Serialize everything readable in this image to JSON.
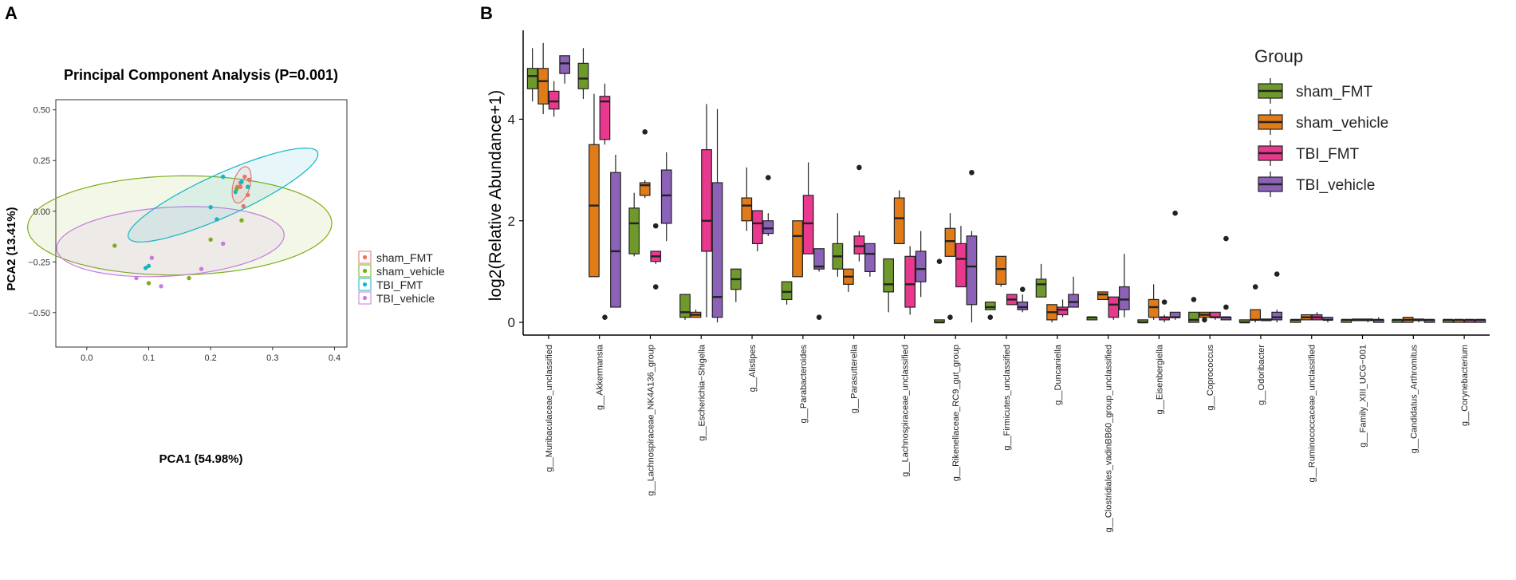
{
  "panel_a_label": "A",
  "panel_b_label": "B",
  "colors": {
    "sham_FMT": "#6F9A2B",
    "sham_vehicle": "#E07B18",
    "TBI_FMT": "#E8398F",
    "TBI_vehicle": "#8B62B8",
    "pca_sham_FMT": "#E8736C",
    "pca_sham_vehicle": "#7CAE19",
    "pca_TBI_FMT": "#13B5C7",
    "pca_TBI_vehicle": "#C77CDD"
  },
  "chart_data": [
    {
      "type": "scatter",
      "title": "Principal Component Analysis (P=0.001)",
      "xlabel": "PCA1 (54.98%)",
      "ylabel": "PCA2 (13.41%)",
      "xlim": [
        -0.05,
        0.42
      ],
      "ylim": [
        -0.67,
        0.55
      ],
      "x_ticks": [
        0.0,
        0.1,
        0.2,
        0.3,
        0.4
      ],
      "x_tick_labels": [
        "0.0",
        "0.1",
        "0.2",
        "0.3",
        "0.4"
      ],
      "y_ticks": [
        0.5,
        0.25,
        0.0,
        -0.25,
        -0.5
      ],
      "y_tick_labels": [
        "0.50",
        "0.25",
        "0.00",
        "−0.25",
        "−0.50"
      ],
      "legend": [
        "sham_FMT",
        "sham_vehicle",
        "TBI_FMT",
        "TBI_vehicle"
      ],
      "ellipses": [
        {
          "group": "sham_vehicle",
          "cx": 0.15,
          "cy": -0.07,
          "rx": 0.25,
          "ry": 0.24,
          "angle": 42
        },
        {
          "group": "TBI_vehicle",
          "cx": 0.135,
          "cy": -0.15,
          "rx": 0.195,
          "ry": 0.16,
          "angle": 36
        },
        {
          "group": "TBI_FMT",
          "cx": 0.22,
          "cy": 0.08,
          "rx": 0.27,
          "ry": 0.065,
          "angle": 58
        },
        {
          "group": "sham_FMT",
          "cx": 0.25,
          "cy": 0.13,
          "rx": 0.09,
          "ry": 0.014,
          "angle": 86
        }
      ],
      "series": [
        {
          "name": "sham_FMT",
          "points": [
            [
              0.255,
              0.17
            ],
            [
              0.26,
              0.08
            ],
            [
              0.248,
              0.14
            ],
            [
              0.253,
              0.025
            ],
            [
              0.243,
              0.12
            ],
            [
              0.248,
              0.12
            ],
            [
              0.262,
              0.155
            ]
          ]
        },
        {
          "name": "sham_vehicle",
          "points": [
            [
              0.045,
              -0.17
            ],
            [
              0.1,
              -0.355
            ],
            [
              0.165,
              -0.33
            ],
            [
              0.2,
              -0.14
            ],
            [
              0.25,
              -0.045
            ],
            [
              0.242,
              0.11
            ]
          ]
        },
        {
          "name": "TBI_FMT",
          "points": [
            [
              0.22,
              0.17
            ],
            [
              0.25,
              0.145
            ],
            [
              0.21,
              -0.04
            ],
            [
              0.24,
              0.095
            ],
            [
              0.26,
              0.12
            ],
            [
              0.095,
              -0.28
            ],
            [
              0.2,
              0.02
            ],
            [
              0.1,
              -0.27
            ]
          ]
        },
        {
          "name": "TBI_vehicle",
          "points": [
            [
              0.08,
              -0.33
            ],
            [
              0.12,
              -0.37
            ],
            [
              0.185,
              -0.285
            ],
            [
              0.22,
              -0.16
            ],
            [
              0.105,
              -0.23
            ]
          ]
        }
      ]
    },
    {
      "type": "boxplot",
      "ylabel": "log2(Relative Abundance+1)",
      "ylim": [
        -0.25,
        5.75
      ],
      "y_ticks": [
        0,
        2,
        4
      ],
      "y_tick_labels": [
        "0",
        "2",
        "4"
      ],
      "legend_title": "Group",
      "groups": [
        "sham_FMT",
        "sham_vehicle",
        "TBI_FMT",
        "TBI_vehicle"
      ],
      "categories": [
        "g__Muribaculaceae_unclassified",
        "g__Akkermansia",
        "g__Lachnospiraceae_NK4A136_group",
        "g__Escherichia−Shigella",
        "g__Alistipes",
        "g__Parabacteroides",
        "g__Parasutterella",
        "g__Lachnospiraceae_unclassified",
        "g__Rikenellaceae_RC9_gut_group",
        "g__Firmicutes_unclassified",
        "g__Duncaniella",
        "g__Clostridiales_vadinBB60_group_unclassified",
        "g__Eisenbergiella",
        "g__Coprococcus",
        "g__Odoribacter",
        "g__Ruminococcaceae_unclassified",
        "g__Family_XIII_UCG−001",
        "g__Candidatus_Arthromitus",
        "g__Corynebacterium"
      ],
      "boxes": [
        [
          [
            4.35,
            4.6,
            4.85,
            5.0,
            5.4,
            []
          ],
          [
            4.1,
            4.3,
            4.75,
            5.0,
            5.5,
            []
          ],
          [
            4.05,
            4.2,
            4.35,
            4.55,
            4.75,
            []
          ],
          [
            4.7,
            4.9,
            5.1,
            5.25,
            5.25,
            []
          ]
        ],
        [
          [
            4.4,
            4.6,
            4.8,
            5.1,
            5.4,
            []
          ],
          [
            0.9,
            0.9,
            2.3,
            3.5,
            4.5,
            []
          ],
          [
            3.5,
            3.6,
            4.35,
            4.45,
            4.7,
            [
              0.1
            ]
          ],
          [
            0.3,
            0.3,
            1.4,
            2.95,
            3.3,
            []
          ]
        ],
        [
          [
            1.3,
            1.35,
            1.95,
            2.25,
            2.55,
            []
          ],
          [
            2.45,
            2.5,
            2.7,
            2.75,
            2.8,
            [
              3.75
            ]
          ],
          [
            1.15,
            1.2,
            1.3,
            1.4,
            1.4,
            [
              0.7,
              1.9
            ]
          ],
          [
            1.6,
            1.95,
            2.5,
            3.0,
            3.35,
            []
          ]
        ],
        [
          [
            0.05,
            0.1,
            0.2,
            0.55,
            0.55,
            []
          ],
          [
            0.1,
            0.1,
            0.15,
            0.2,
            0.25,
            []
          ],
          [
            0.1,
            1.4,
            2.0,
            3.4,
            4.3,
            []
          ],
          [
            0.0,
            0.1,
            0.5,
            2.75,
            4.2,
            []
          ]
        ],
        [
          [
            0.4,
            0.65,
            0.85,
            1.05,
            1.05,
            []
          ],
          [
            1.8,
            2.0,
            2.3,
            2.45,
            3.05,
            []
          ],
          [
            1.4,
            1.55,
            1.95,
            2.2,
            2.2,
            []
          ],
          [
            1.7,
            1.75,
            1.85,
            2.0,
            2.15,
            [
              2.85
            ]
          ]
        ],
        [
          [
            0.35,
            0.45,
            0.6,
            0.8,
            0.8,
            []
          ],
          [
            0.9,
            0.9,
            1.7,
            2.0,
            2.0,
            []
          ],
          [
            1.4,
            1.35,
            1.95,
            2.5,
            3.15,
            []
          ],
          [
            1.0,
            1.05,
            1.1,
            1.45,
            1.45,
            [
              0.1
            ]
          ]
        ],
        [
          [
            0.9,
            1.05,
            1.3,
            1.55,
            2.15,
            []
          ],
          [
            0.6,
            0.75,
            0.9,
            1.05,
            1.05,
            []
          ],
          [
            1.2,
            1.35,
            1.5,
            1.7,
            1.8,
            [
              3.05
            ]
          ],
          [
            0.9,
            1.0,
            1.35,
            1.55,
            1.55,
            []
          ]
        ],
        [
          [
            0.2,
            0.6,
            0.75,
            1.25,
            1.25,
            []
          ],
          [
            1.55,
            1.55,
            2.05,
            2.45,
            2.6,
            []
          ],
          [
            0.15,
            0.3,
            0.75,
            1.3,
            1.5,
            []
          ],
          [
            0.5,
            0.8,
            1.05,
            1.4,
            1.8,
            []
          ]
        ],
        [
          [
            0.0,
            0.0,
            0.0,
            0.05,
            0.05,
            [
              1.2
            ]
          ],
          [
            1.3,
            1.3,
            1.6,
            1.85,
            2.15,
            [
              0.1
            ]
          ],
          [
            0.7,
            0.7,
            1.25,
            1.55,
            1.9,
            []
          ],
          [
            0.0,
            0.35,
            1.1,
            1.7,
            1.8,
            [
              2.95
            ]
          ]
        ],
        [
          [
            0.25,
            0.25,
            0.3,
            0.4,
            0.4,
            [
              0.1
            ]
          ],
          [
            0.7,
            0.75,
            1.05,
            1.3,
            1.3,
            []
          ],
          [
            0.35,
            0.35,
            0.45,
            0.55,
            0.55,
            []
          ],
          [
            0.2,
            0.25,
            0.3,
            0.4,
            0.55,
            [
              0.65
            ]
          ]
        ],
        [
          [
            0.5,
            0.5,
            0.75,
            0.85,
            1.15,
            []
          ],
          [
            0.0,
            0.05,
            0.2,
            0.35,
            0.35,
            []
          ],
          [
            0.1,
            0.15,
            0.25,
            0.3,
            0.45,
            []
          ],
          [
            0.3,
            0.3,
            0.4,
            0.55,
            0.9,
            []
          ]
        ],
        [
          [
            0.05,
            0.05,
            0.1,
            0.1,
            0.1,
            []
          ],
          [
            0.45,
            0.45,
            0.55,
            0.6,
            0.6,
            []
          ],
          [
            0.05,
            0.1,
            0.35,
            0.5,
            0.5,
            []
          ],
          [
            0.1,
            0.25,
            0.45,
            0.7,
            1.35,
            []
          ]
        ],
        [
          [
            0.0,
            0.0,
            0.0,
            0.05,
            0.05,
            []
          ],
          [
            0.05,
            0.1,
            0.3,
            0.45,
            0.75,
            []
          ],
          [
            0.0,
            0.05,
            0.1,
            0.1,
            0.15,
            [
              0.4
            ]
          ],
          [
            0.05,
            0.1,
            0.1,
            0.2,
            0.2,
            [
              2.15
            ]
          ]
        ],
        [
          [
            0.0,
            0.0,
            0.05,
            0.2,
            0.2,
            [
              0.45
            ]
          ],
          [
            0.0,
            0.1,
            0.15,
            0.2,
            0.2,
            [
              0.05
            ]
          ],
          [
            0.05,
            0.1,
            0.1,
            0.2,
            0.2,
            []
          ],
          [
            0.05,
            0.05,
            0.1,
            0.1,
            0.1,
            [
              0.3,
              1.65
            ]
          ]
        ],
        [
          [
            0.0,
            0.0,
            0.0,
            0.05,
            0.05,
            []
          ],
          [
            0.0,
            0.05,
            0.05,
            0.25,
            0.25,
            [
              0.7
            ]
          ],
          [
            0.05,
            0.05,
            0.05,
            0.05,
            0.05,
            []
          ],
          [
            0.0,
            0.05,
            0.1,
            0.2,
            0.25,
            [
              0.95
            ]
          ]
        ],
        [
          [
            0.0,
            0.0,
            0.05,
            0.05,
            0.05,
            []
          ],
          [
            0.05,
            0.05,
            0.1,
            0.15,
            0.15,
            []
          ],
          [
            0.05,
            0.05,
            0.1,
            0.15,
            0.2,
            []
          ],
          [
            0.0,
            0.05,
            0.05,
            0.1,
            0.1,
            []
          ]
        ],
        [
          [
            0.0,
            0.0,
            0.05,
            0.05,
            0.05,
            []
          ],
          [
            0.05,
            0.05,
            0.05,
            0.05,
            0.05,
            []
          ],
          [
            0.0,
            0.05,
            0.05,
            0.05,
            0.05,
            []
          ],
          [
            0.0,
            0.0,
            0.05,
            0.05,
            0.1,
            []
          ]
        ],
        [
          [
            0.0,
            0.0,
            0.05,
            0.05,
            0.05,
            []
          ],
          [
            0.0,
            0.0,
            0.05,
            0.1,
            0.1,
            []
          ],
          [
            0.0,
            0.05,
            0.05,
            0.05,
            0.05,
            []
          ],
          [
            0.0,
            0.0,
            0.05,
            0.05,
            0.05,
            []
          ]
        ],
        [
          [
            0.0,
            0.0,
            0.05,
            0.05,
            0.05,
            []
          ],
          [
            0.0,
            0.0,
            0.05,
            0.05,
            0.05,
            []
          ],
          [
            0.0,
            0.0,
            0.05,
            0.05,
            0.05,
            []
          ],
          [
            0.0,
            0.0,
            0.05,
            0.05,
            0.05,
            []
          ]
        ]
      ]
    }
  ]
}
